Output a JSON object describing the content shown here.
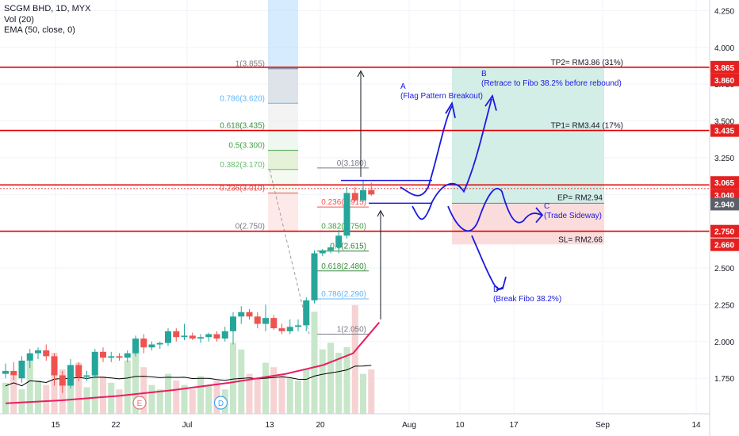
{
  "legend": {
    "symbol": "SCGM BHD, 1D, MYX",
    "volume": "Vol (20)",
    "ema": "EMA (50, close, 0)"
  },
  "colors": {
    "up": "#26a69a",
    "down": "#ef5350",
    "vol_up": "#c8e6c9",
    "vol_down": "#f6d2d2",
    "ema": "#e91e63",
    "vol_ma": "#000000",
    "red_line": "#e00000",
    "target_zone": "#d3ede7",
    "stop_zone": "#fbdcdc",
    "drawing": "#1a1adf",
    "marker_e": "#e57373",
    "marker_d": "#42a5f5"
  },
  "chart_data": {
    "type": "candlestick",
    "price_axis": {
      "range": [
        1.53,
        4.29
      ],
      "ticks": [
        "4.250",
        "4.000",
        "3.750",
        "3.500",
        "3.250",
        "3.000",
        "2.750",
        "2.500",
        "2.250",
        "2.000",
        "1.750"
      ]
    },
    "time_axis": {
      "labels": [
        "15",
        "22",
        "Jul",
        "13",
        "20",
        "Aug",
        "10",
        "17",
        "Sep",
        "14"
      ]
    },
    "price_badges": [
      {
        "value": "3.865",
        "kind": "red"
      },
      {
        "value": "3.860",
        "kind": "red"
      },
      {
        "value": "3.435",
        "kind": "red"
      },
      {
        "value": "3.065",
        "kind": "red"
      },
      {
        "value": "3.040",
        "kind": "red"
      },
      {
        "value": "2.940",
        "kind": "gray"
      },
      {
        "value": "2.750",
        "kind": "red"
      },
      {
        "value": "2.660",
        "kind": "red"
      }
    ],
    "candles": [
      {
        "o": 1.78,
        "h": 1.85,
        "l": 1.75,
        "c": 1.8
      },
      {
        "o": 1.8,
        "h": 1.86,
        "l": 1.74,
        "c": 1.77
      },
      {
        "o": 1.75,
        "h": 1.9,
        "l": 1.72,
        "c": 1.87
      },
      {
        "o": 1.87,
        "h": 1.95,
        "l": 1.82,
        "c": 1.92
      },
      {
        "o": 1.92,
        "h": 1.96,
        "l": 1.88,
        "c": 1.94
      },
      {
        "o": 1.94,
        "h": 1.98,
        "l": 1.87,
        "c": 1.9
      },
      {
        "o": 1.9,
        "h": 1.92,
        "l": 1.7,
        "c": 1.77
      },
      {
        "o": 1.77,
        "h": 1.8,
        "l": 1.65,
        "c": 1.7
      },
      {
        "o": 1.7,
        "h": 1.88,
        "l": 1.68,
        "c": 1.84
      },
      {
        "o": 1.84,
        "h": 1.86,
        "l": 1.73,
        "c": 1.76
      },
      {
        "o": 1.76,
        "h": 1.8,
        "l": 1.73,
        "c": 1.77
      },
      {
        "o": 1.77,
        "h": 1.95,
        "l": 1.75,
        "c": 1.93
      },
      {
        "o": 1.93,
        "h": 1.96,
        "l": 1.86,
        "c": 1.89
      },
      {
        "o": 1.89,
        "h": 1.93,
        "l": 1.86,
        "c": 1.9
      },
      {
        "o": 1.9,
        "h": 1.92,
        "l": 1.87,
        "c": 1.89
      },
      {
        "o": 1.89,
        "h": 1.94,
        "l": 1.86,
        "c": 1.92
      },
      {
        "o": 1.92,
        "h": 2.04,
        "l": 1.9,
        "c": 2.02
      },
      {
        "o": 2.02,
        "h": 2.05,
        "l": 1.92,
        "c": 1.96
      },
      {
        "o": 1.96,
        "h": 2.0,
        "l": 1.94,
        "c": 1.98
      },
      {
        "o": 1.98,
        "h": 2.0,
        "l": 1.95,
        "c": 1.99
      },
      {
        "o": 1.99,
        "h": 2.09,
        "l": 1.97,
        "c": 2.07
      },
      {
        "o": 2.07,
        "h": 2.09,
        "l": 2.0,
        "c": 2.03
      },
      {
        "o": 2.03,
        "h": 2.12,
        "l": 2.01,
        "c": 2.04
      },
      {
        "o": 2.04,
        "h": 2.06,
        "l": 2.01,
        "c": 2.02
      },
      {
        "o": 2.02,
        "h": 2.05,
        "l": 1.99,
        "c": 2.03
      },
      {
        "o": 2.03,
        "h": 2.06,
        "l": 2.0,
        "c": 2.05
      },
      {
        "o": 2.05,
        "h": 2.07,
        "l": 2.0,
        "c": 2.02
      },
      {
        "o": 2.02,
        "h": 2.1,
        "l": 2.0,
        "c": 2.07
      },
      {
        "o": 2.07,
        "h": 2.2,
        "l": 1.98,
        "c": 2.17
      },
      {
        "o": 2.17,
        "h": 2.24,
        "l": 2.12,
        "c": 2.2
      },
      {
        "o": 2.2,
        "h": 2.22,
        "l": 2.15,
        "c": 2.17
      },
      {
        "o": 2.17,
        "h": 2.2,
        "l": 2.09,
        "c": 2.12
      },
      {
        "o": 2.12,
        "h": 2.25,
        "l": 2.07,
        "c": 2.16
      },
      {
        "o": 2.16,
        "h": 2.18,
        "l": 2.08,
        "c": 2.09
      },
      {
        "o": 2.09,
        "h": 2.12,
        "l": 2.05,
        "c": 2.07
      },
      {
        "o": 2.07,
        "h": 2.15,
        "l": 2.05,
        "c": 2.1
      },
      {
        "o": 2.1,
        "h": 2.15,
        "l": 2.07,
        "c": 2.11
      },
      {
        "o": 2.11,
        "h": 2.3,
        "l": 2.07,
        "c": 2.28
      },
      {
        "o": 2.28,
        "h": 2.62,
        "l": 2.26,
        "c": 2.6
      },
      {
        "o": 2.6,
        "h": 2.63,
        "l": 2.58,
        "c": 2.62
      },
      {
        "o": 2.62,
        "h": 2.66,
        "l": 2.6,
        "c": 2.64
      },
      {
        "o": 2.64,
        "h": 2.76,
        "l": 2.6,
        "c": 2.72
      },
      {
        "o": 2.72,
        "h": 3.05,
        "l": 2.7,
        "c": 3.01
      },
      {
        "o": 3.01,
        "h": 3.05,
        "l": 2.95,
        "c": 2.96
      },
      {
        "o": 2.96,
        "h": 3.1,
        "l": 2.95,
        "c": 3.03
      },
      {
        "o": 3.03,
        "h": 3.08,
        "l": 2.99,
        "c": 3.0
      }
    ],
    "volume": [
      0.28,
      0.34,
      0.22,
      0.48,
      0.3,
      0.26,
      0.55,
      0.4,
      0.36,
      0.46,
      0.24,
      0.52,
      0.34,
      0.28,
      0.22,
      0.48,
      0.62,
      0.42,
      0.26,
      0.22,
      0.36,
      0.3,
      0.26,
      0.22,
      0.34,
      0.26,
      0.3,
      0.22,
      0.64,
      0.58,
      0.36,
      0.32,
      0.46,
      0.42,
      0.36,
      0.32,
      0.3,
      0.4,
      0.92,
      0.58,
      0.64,
      0.55,
      0.6,
      0.98,
      0.36,
      0.4
    ],
    "ema_points": [
      [
        0,
        1.58
      ],
      [
        0.15,
        1.6
      ],
      [
        0.3,
        1.63
      ],
      [
        0.45,
        1.67
      ],
      [
        0.6,
        1.72
      ],
      [
        0.75,
        1.78
      ],
      [
        0.85,
        1.84
      ],
      [
        0.93,
        1.92
      ],
      [
        1.0,
        2.13
      ]
    ],
    "fib_left": {
      "levels": [
        {
          "label": "1(3.855)",
          "price": 3.855,
          "color": "#787b86"
        },
        {
          "label": "0.786(3.620)",
          "price": 3.62,
          "color": "#64b5f6"
        },
        {
          "label": "0.618(3.435)",
          "price": 3.435,
          "color": "#388e3c"
        },
        {
          "label": "0.5(3.300)",
          "price": 3.3,
          "color": "#43a047"
        },
        {
          "label": "0.382(3.170)",
          "price": 3.17,
          "color": "#66bb6a"
        },
        {
          "label": "0.236(3.010)",
          "price": 3.01,
          "color": "#ef5350"
        },
        {
          "label": "0(2.750)",
          "price": 2.75,
          "color": "#787b86"
        }
      ]
    },
    "fib_right": {
      "levels": [
        {
          "label": "0(3.180)",
          "price": 3.18,
          "color": "#787b86"
        },
        {
          "label": "0.236(2.915)",
          "price": 2.915,
          "color": "#ef5350"
        },
        {
          "label": "0.382(2.750)",
          "price": 2.75,
          "color": "#43a047"
        },
        {
          "label": "0.5(2.615)",
          "price": 2.615,
          "color": "#2e7d32"
        },
        {
          "label": "0.618(2.480)",
          "price": 2.48,
          "color": "#388e3c"
        },
        {
          "label": "0.786(2.290)",
          "price": 2.29,
          "color": "#64b5f6"
        },
        {
          "label": "1(2.050)",
          "price": 2.05,
          "color": "#787b86"
        }
      ]
    },
    "horizontal_lines": [
      3.865,
      3.435,
      3.065,
      2.75
    ],
    "position": {
      "tp2_label": "TP2= RM3.86 (31%)",
      "tp1_label": "TP1= RM3.44 (17%)",
      "ep_label": "EP= RM2.94",
      "sl_label": "SL= RM2.66",
      "tp2": 3.865,
      "tp1": 3.435,
      "entry": 2.94,
      "stop": 2.66
    },
    "annotations": {
      "a_letter": "A",
      "a_text": "(Flag Pattern Breakout)",
      "b_letter": "B",
      "b_text": "(Retrace to Fibo 38.2% before rebound)",
      "c_letter": "C",
      "c_text": "(Trade Sideway)",
      "d_letter": "D",
      "d_text": "(Break Fibo 38.2%)"
    },
    "markers": [
      {
        "letter": "E",
        "slot": 16
      },
      {
        "letter": "D",
        "slot": 26
      }
    ]
  }
}
